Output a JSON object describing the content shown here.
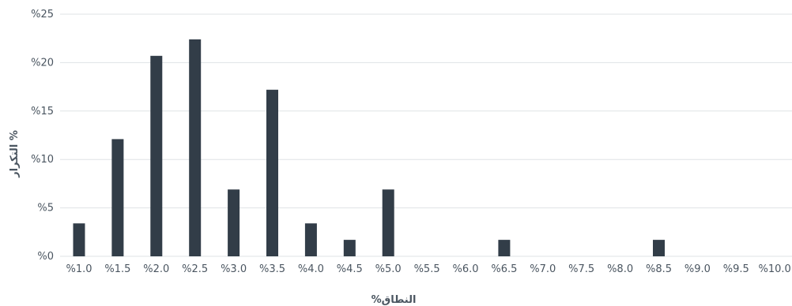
{
  "chart_data": {
    "type": "bar",
    "title": "",
    "xlabel": "%النطاق",
    "ylabel": "التكرار %",
    "grid": true,
    "ylim": [
      0,
      25
    ],
    "y_ticks": [
      "%0",
      "%5",
      "%10",
      "%15",
      "%20",
      "%25"
    ],
    "categories": [
      "%1.0",
      "%1.5",
      "%2.0",
      "%2.5",
      "%3.0",
      "%3.5",
      "%4.0",
      "%4.5",
      "%5.0",
      "%5.5",
      "%6.0",
      "%6.5",
      "%7.0",
      "%7.5",
      "%8.0",
      "%8.5",
      "%9.0",
      "%9.5",
      "%10.0"
    ],
    "values": [
      3.4,
      12.1,
      20.7,
      22.4,
      6.9,
      17.2,
      3.4,
      1.7,
      6.9,
      0,
      0,
      1.7,
      0,
      0,
      0,
      1.7,
      0,
      0,
      0
    ],
    "bar_color": "#323d48"
  }
}
